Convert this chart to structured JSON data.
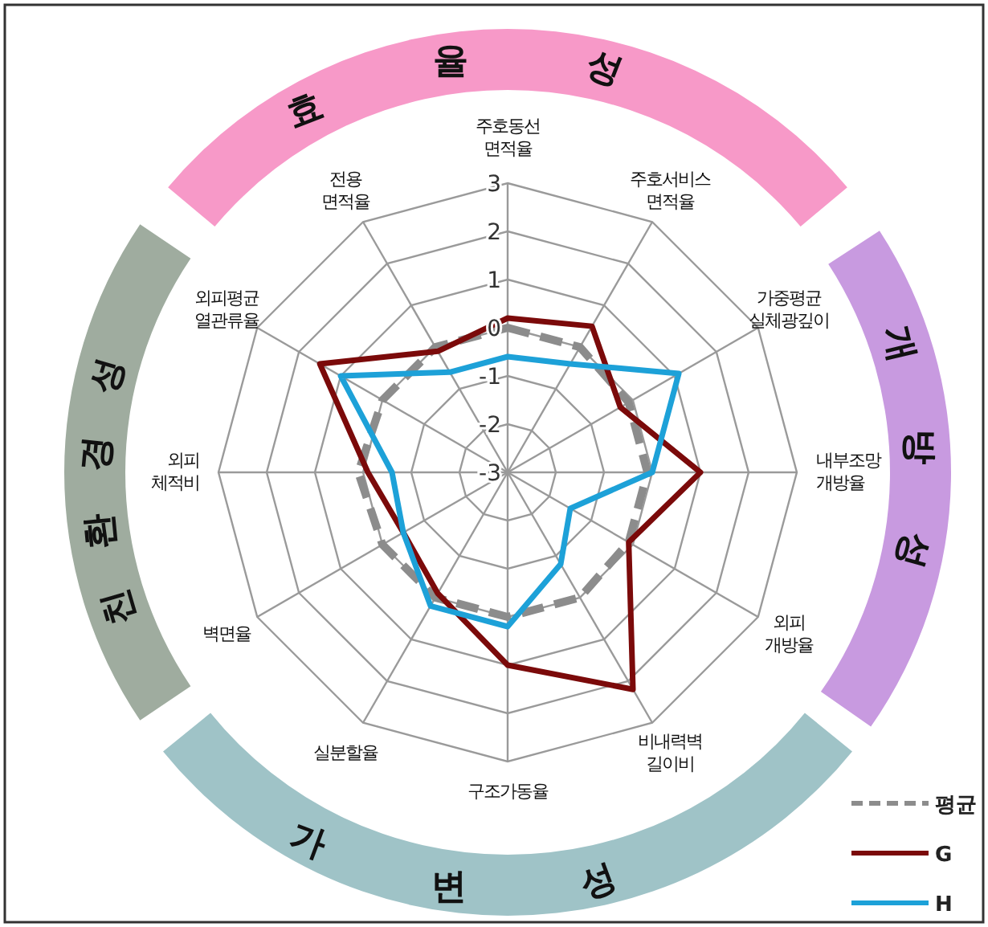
{
  "chart_data": {
    "type": "radar",
    "categories": [
      "주호동선\n면적율",
      "주호서비스\n면적율",
      "가중평균\n실체광깊이",
      "내부조망\n개방율",
      "외피\n개방율",
      "비내력벽\n길이비",
      "구조가동율",
      "실분할율",
      "벽면율",
      "외피\n체적비",
      "외피평균\n열관류율",
      "전용\n면적율"
    ],
    "series": [
      {
        "name": "평균",
        "color": "#8c8c8c",
        "line_style": "dashed",
        "values": [
          0,
          0,
          -0.1,
          -0.1,
          -0.1,
          0,
          0,
          0,
          0,
          0.1,
          0,
          0
        ]
      },
      {
        "name": "G",
        "color": "#7b0a0a",
        "line_style": "solid",
        "values": [
          0.2,
          0.5,
          -0.3,
          1.0,
          -0.1,
          2.2,
          1.0,
          -0.1,
          -0.5,
          -0.1,
          1.5,
          -0.1
        ]
      },
      {
        "name": "H",
        "color": "#1da1d8",
        "line_style": "solid",
        "values": [
          -0.6,
          -0.4,
          1.1,
          0,
          -1.5,
          -0.8,
          0.2,
          0.2,
          -0.5,
          -0.6,
          1.0,
          -0.6
        ]
      }
    ],
    "ylim": [
      -3,
      3
    ],
    "yticks": [
      -3,
      -2,
      -1,
      0,
      1,
      2,
      3
    ],
    "annotations": [
      "효율성",
      "개방성",
      "가변성",
      "친환경성"
    ],
    "legend": "bottom right",
    "grid": true
  }
}
